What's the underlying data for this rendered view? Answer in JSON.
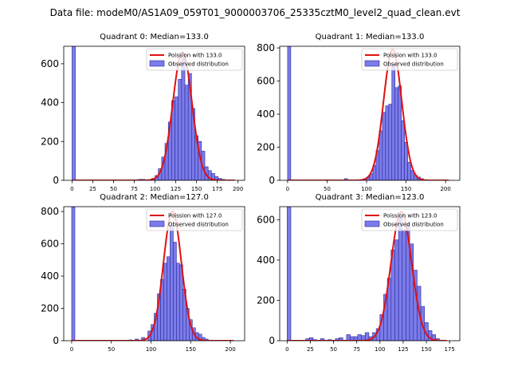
{
  "suptitle": "Data file: modeM0/AS1A09_059T01_9000003706_25335cztM0_level2_quad_clean.evt",
  "colors": {
    "bar_fill": "#7b7bea",
    "bar_edge": "#2a2a9a",
    "fit_line": "#e01010",
    "axis": "#000000"
  },
  "chart_data": [
    {
      "type": "bar",
      "title": "Quadrant 0: Median=133.0",
      "legend": {
        "line": "Poission with 133.0",
        "bars": "Observed distribution",
        "placement": "top-right"
      },
      "xlim": [
        -10,
        208
      ],
      "ylim": [
        0,
        690
      ],
      "xticks": [
        0,
        25,
        50,
        75,
        100,
        125,
        150,
        175,
        200
      ],
      "yticks": [
        0,
        200,
        400,
        600
      ],
      "bin_width": 4,
      "zero_bar": 690,
      "bins": [
        [
          80,
          5
        ],
        [
          84,
          5
        ],
        [
          96,
          10
        ],
        [
          100,
          25
        ],
        [
          104,
          60
        ],
        [
          108,
          120
        ],
        [
          112,
          190
        ],
        [
          116,
          300
        ],
        [
          120,
          410
        ],
        [
          124,
          430
        ],
        [
          128,
          520
        ],
        [
          132,
          630
        ],
        [
          136,
          490
        ],
        [
          140,
          550
        ],
        [
          144,
          370
        ],
        [
          148,
          230
        ],
        [
          152,
          200
        ],
        [
          156,
          150
        ],
        [
          160,
          70
        ],
        [
          164,
          50
        ],
        [
          168,
          35
        ],
        [
          172,
          20
        ],
        [
          176,
          10
        ],
        [
          180,
          5
        ]
      ],
      "poisson_mean": 133.0,
      "poisson_peak": 660,
      "fit_range": [
        0,
        196
      ]
    },
    {
      "type": "bar",
      "title": "Quadrant 1: Median=133.0",
      "legend": {
        "line": "Poission with 133.0",
        "bars": "Observed distribution",
        "placement": "top-right"
      },
      "xlim": [
        -10,
        218
      ],
      "ylim": [
        0,
        810
      ],
      "xticks": [
        0,
        50,
        100,
        150,
        200
      ],
      "yticks": [
        0,
        200,
        400,
        600,
        800
      ],
      "bin_width": 4,
      "zero_bar": 810,
      "bins": [
        [
          72,
          10
        ],
        [
          96,
          10
        ],
        [
          100,
          20
        ],
        [
          104,
          40
        ],
        [
          108,
          90
        ],
        [
          112,
          180
        ],
        [
          116,
          300
        ],
        [
          120,
          410
        ],
        [
          124,
          450
        ],
        [
          128,
          460
        ],
        [
          132,
          700
        ],
        [
          136,
          560
        ],
        [
          140,
          570
        ],
        [
          144,
          360
        ],
        [
          148,
          230
        ],
        [
          152,
          110
        ],
        [
          156,
          60
        ],
        [
          160,
          30
        ],
        [
          164,
          20
        ],
        [
          168,
          10
        ]
      ],
      "poisson_mean": 133.0,
      "poisson_peak": 790,
      "fit_range": [
        0,
        204
      ]
    },
    {
      "type": "bar",
      "title": "Quadrant 2: Median=127.0",
      "legend": {
        "line": "Poission with 127.0",
        "bars": "Observed distribution",
        "placement": "top-right"
      },
      "xlim": [
        -10,
        218
      ],
      "ylim": [
        0,
        830
      ],
      "xticks": [
        0,
        50,
        100,
        150,
        200
      ],
      "yticks": [
        0,
        200,
        400,
        600,
        800
      ],
      "bin_width": 4,
      "zero_bar": 830,
      "bins": [
        [
          72,
          5
        ],
        [
          80,
          10
        ],
        [
          88,
          20
        ],
        [
          96,
          60
        ],
        [
          100,
          100
        ],
        [
          104,
          170
        ],
        [
          108,
          290
        ],
        [
          112,
          380
        ],
        [
          116,
          480
        ],
        [
          120,
          520
        ],
        [
          124,
          710
        ],
        [
          128,
          610
        ],
        [
          132,
          480
        ],
        [
          136,
          470
        ],
        [
          140,
          320
        ],
        [
          144,
          200
        ],
        [
          148,
          130
        ],
        [
          152,
          80
        ],
        [
          156,
          50
        ],
        [
          160,
          40
        ],
        [
          164,
          20
        ],
        [
          168,
          10
        ]
      ],
      "poisson_mean": 127.0,
      "poisson_peak": 800,
      "fit_range": [
        0,
        204
      ]
    },
    {
      "type": "bar",
      "title": "Quadrant 3: Median=123.0",
      "legend": {
        "line": "Poission with 123.0",
        "bars": "Observed distribution",
        "placement": "top-right"
      },
      "xlim": [
        -8,
        186
      ],
      "ylim": [
        0,
        665
      ],
      "xticks": [
        0,
        25,
        50,
        75,
        100,
        125,
        150,
        175
      ],
      "yticks": [
        0,
        200,
        400,
        600
      ],
      "bin_width": 4,
      "zero_bar": 665,
      "bins": [
        [
          20,
          10
        ],
        [
          24,
          15
        ],
        [
          28,
          5
        ],
        [
          36,
          10
        ],
        [
          44,
          5
        ],
        [
          52,
          10
        ],
        [
          56,
          15
        ],
        [
          64,
          30
        ],
        [
          68,
          20
        ],
        [
          72,
          20
        ],
        [
          76,
          30
        ],
        [
          80,
          25
        ],
        [
          84,
          40
        ],
        [
          88,
          20
        ],
        [
          92,
          40
        ],
        [
          96,
          60
        ],
        [
          100,
          130
        ],
        [
          104,
          230
        ],
        [
          108,
          310
        ],
        [
          112,
          450
        ],
        [
          116,
          500
        ],
        [
          120,
          610
        ],
        [
          124,
          550
        ],
        [
          128,
          580
        ],
        [
          132,
          480
        ],
        [
          136,
          350
        ],
        [
          140,
          270
        ],
        [
          144,
          170
        ],
        [
          148,
          90
        ],
        [
          152,
          50
        ],
        [
          156,
          30
        ],
        [
          160,
          10
        ]
      ],
      "poisson_mean": 123.0,
      "poisson_peak": 640,
      "fit_range": [
        0,
        172
      ]
    }
  ]
}
